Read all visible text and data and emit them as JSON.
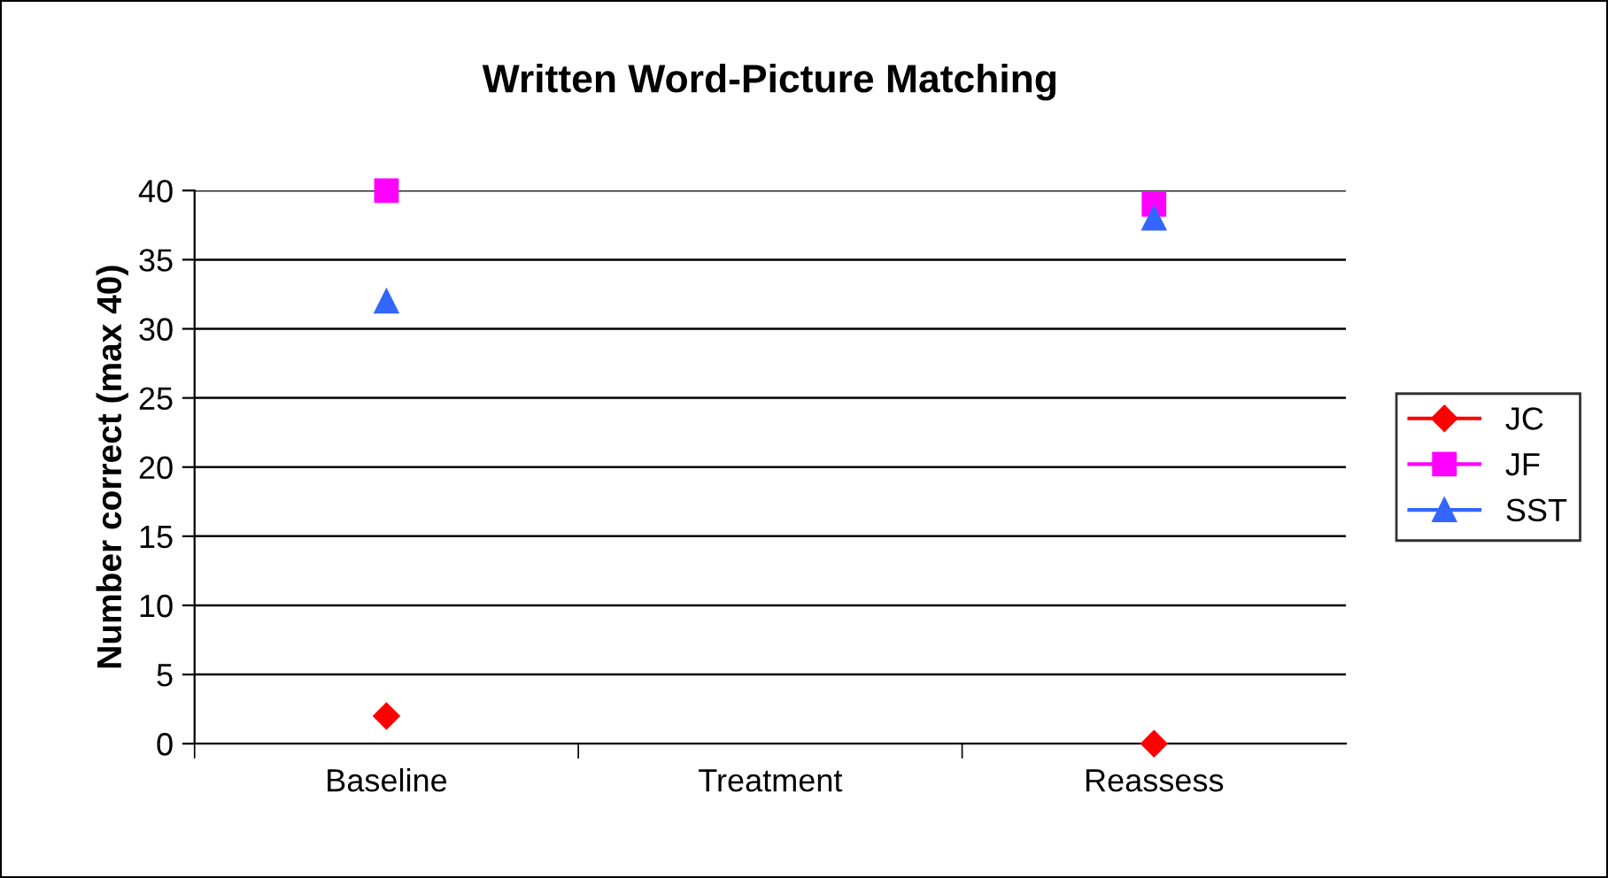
{
  "chart_data": {
    "type": "scatter",
    "title": "Written Word-Picture Matching",
    "ylabel": "Number correct (max 40)",
    "categories": [
      "Baseline",
      "Treatment",
      "Reassess"
    ],
    "series": [
      {
        "name": "JC",
        "color": "#ff0000",
        "marker": "diamond",
        "values": [
          2,
          null,
          0
        ]
      },
      {
        "name": "JF",
        "color": "#ff00ff",
        "marker": "square",
        "values": [
          40,
          null,
          39
        ]
      },
      {
        "name": "SST",
        "color": "#3366ff",
        "marker": "triangle",
        "values": [
          32,
          null,
          38
        ]
      }
    ],
    "ylim": [
      0,
      40
    ],
    "yticks": [
      0,
      5,
      10,
      15,
      20,
      25,
      30,
      35,
      40
    ],
    "grid": "y",
    "legend": "right",
    "line_style": "solid"
  }
}
